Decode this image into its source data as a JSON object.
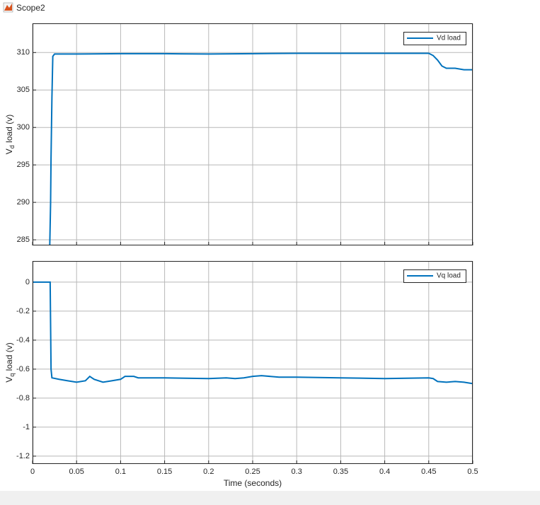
{
  "window_title": "Scope2",
  "chart_data": [
    {
      "type": "line",
      "ylabel": {
        "base": "V",
        "sub": "d",
        "rest": " load (v)"
      },
      "x": [
        0.0195,
        0.0205,
        0.021,
        0.022,
        0.023,
        0.025,
        0.05,
        0.1,
        0.15,
        0.2,
        0.25,
        0.3,
        0.35,
        0.4,
        0.45,
        0.455,
        0.46,
        0.465,
        0.47,
        0.48,
        0.49,
        0.5
      ],
      "series": [
        {
          "name": "Vd load",
          "color": "#0072bd",
          "values": [
            284,
            290,
            296,
            304,
            309.5,
            309.8,
            309.8,
            309.85,
            309.85,
            309.8,
            309.85,
            309.9,
            309.9,
            309.9,
            309.9,
            309.6,
            309.0,
            308.2,
            307.9,
            307.9,
            307.7,
            307.7
          ]
        }
      ],
      "xlim": [
        0,
        0.5
      ],
      "xticks": [
        0,
        0.05,
        0.1,
        0.15,
        0.2,
        0.25,
        0.3,
        0.35,
        0.4,
        0.45,
        0.5
      ],
      "ylim": [
        284.25,
        313.9
      ],
      "yticks": [
        285,
        290,
        295,
        300,
        305,
        310
      ],
      "grid": true,
      "legend": "upper right"
    },
    {
      "type": "line",
      "ylabel": {
        "base": "V",
        "sub": "q",
        "rest": " load (v)"
      },
      "xlabel": "Time (seconds)",
      "x": [
        0,
        0.02,
        0.021,
        0.022,
        0.03,
        0.04,
        0.05,
        0.06,
        0.065,
        0.07,
        0.08,
        0.09,
        0.1,
        0.105,
        0.115,
        0.12,
        0.15,
        0.2,
        0.22,
        0.23,
        0.24,
        0.25,
        0.26,
        0.28,
        0.3,
        0.35,
        0.4,
        0.45,
        0.455,
        0.46,
        0.47,
        0.48,
        0.49,
        0.5
      ],
      "series": [
        {
          "name": "Vq load",
          "color": "#0072bd",
          "values": [
            0,
            0,
            -0.6,
            -0.66,
            -0.67,
            -0.68,
            -0.69,
            -0.68,
            -0.65,
            -0.67,
            -0.69,
            -0.68,
            -0.67,
            -0.65,
            -0.65,
            -0.66,
            -0.66,
            -0.665,
            -0.66,
            -0.665,
            -0.66,
            -0.65,
            -0.645,
            -0.655,
            -0.655,
            -0.66,
            -0.665,
            -0.66,
            -0.665,
            -0.685,
            -0.69,
            -0.685,
            -0.69,
            -0.7
          ]
        }
      ],
      "xlim": [
        0,
        0.5
      ],
      "xticks": [
        0,
        0.05,
        0.1,
        0.15,
        0.2,
        0.25,
        0.3,
        0.35,
        0.4,
        0.45,
        0.5
      ],
      "ylim": [
        -1.254,
        0.146
      ],
      "yticks": [
        -1.2,
        -1,
        -0.8,
        -0.6,
        -0.4,
        -0.2,
        0
      ],
      "grid": true,
      "legend": "upper right"
    }
  ]
}
